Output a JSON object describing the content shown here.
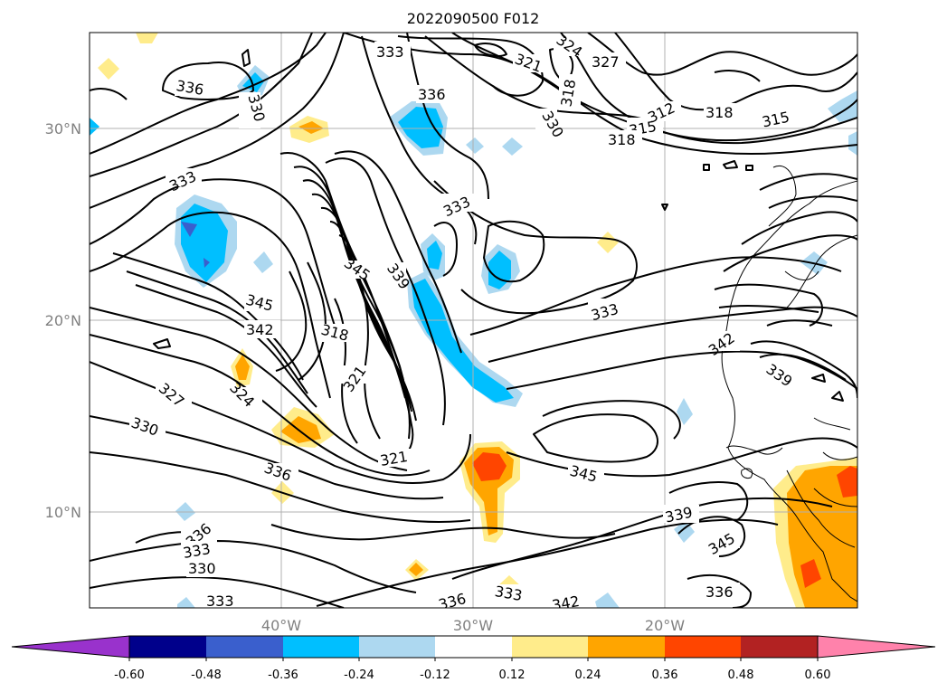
{
  "title": "2022090500 F012",
  "lat_labels": [
    "30°N",
    "20°N",
    "10°N"
  ],
  "lon_labels": [
    "40°W",
    "30°W",
    "20°W"
  ],
  "contour_labels": [
    "333",
    "336",
    "330",
    "333",
    "336",
    "324",
    "327",
    "321",
    "330",
    "318",
    "315",
    "312",
    "318",
    "315",
    "318",
    "333",
    "345",
    "339",
    "345",
    "342",
    "318",
    "321",
    "327",
    "324",
    "330",
    "321",
    "333",
    "345",
    "336",
    "342",
    "339",
    "339",
    "336",
    "333",
    "330",
    "333",
    "336",
    "333",
    "342",
    "336",
    "345"
  ],
  "colorbar": {
    "tick_labels": [
      "-0.60",
      "-0.48",
      "-0.36",
      "-0.24",
      "-0.12",
      "0.12",
      "0.24",
      "0.36",
      "0.48",
      "0.60"
    ],
    "colors": [
      "#9932cc",
      "#00008b",
      "#3a5fcd",
      "#00bfff",
      "#add8f0",
      "#ffffff",
      "#ffec8b",
      "#ffa500",
      "#ff4500",
      "#b22222",
      "#ff82ab"
    ]
  },
  "shading_colors": {
    "light_blue": "#add8f0",
    "blue": "#00bfff",
    "mid_blue": "#3a5fcd",
    "purple": "#9932cc",
    "yellow": "#ffec8b",
    "orange": "#ffa500",
    "red_orange": "#ff4500"
  }
}
